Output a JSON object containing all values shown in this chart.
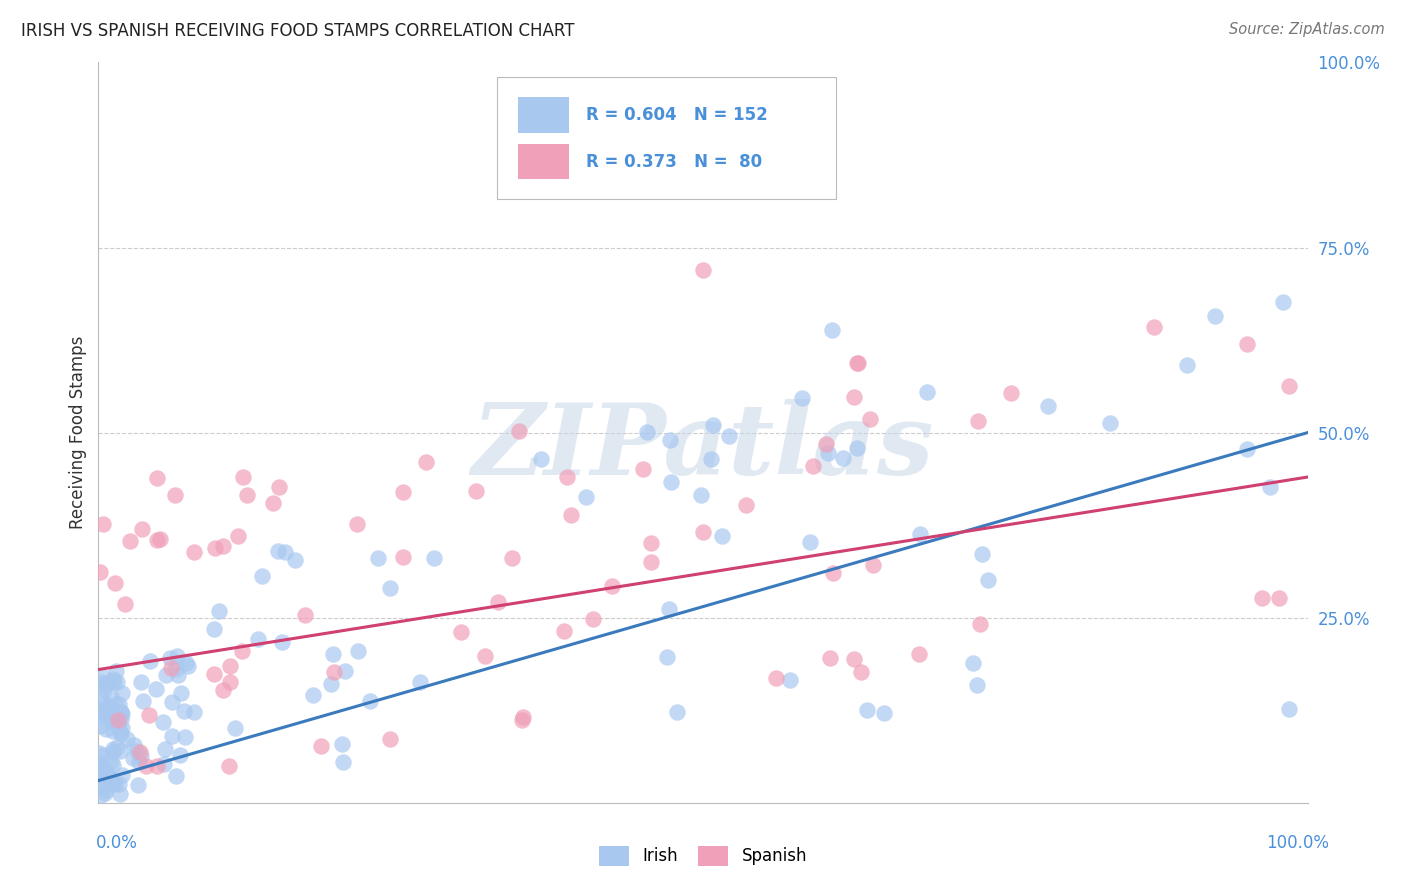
{
  "title": "IRISH VS SPANISH RECEIVING FOOD STAMPS CORRELATION CHART",
  "source": "Source: ZipAtlas.com",
  "ylabel": "Receiving Food Stamps",
  "watermark": "ZIPatlas",
  "irish_color": "#a8c8f0",
  "irish_line_color": "#3a7abd",
  "spanish_color": "#f0a0b8",
  "spanish_line_color": "#d04070",
  "irish_R": 0.604,
  "irish_N": 152,
  "spanish_R": 0.373,
  "spanish_N": 80,
  "background_color": "#ffffff",
  "grid_color": "#cccccc",
  "ytick_color": "#4a90d9",
  "axis_label_color": "#333333",
  "title_color": "#222222",
  "source_color": "#777777"
}
